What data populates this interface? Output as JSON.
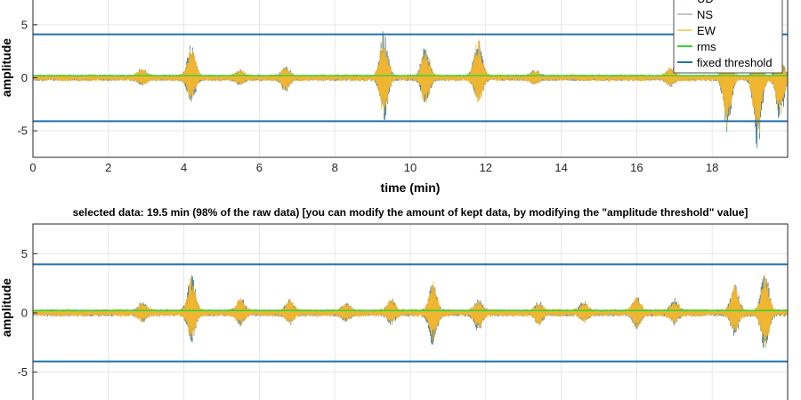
{
  "colors": {
    "UD": "#2f6f8f",
    "NS": "#9aa3a8",
    "EW": "#f5b62a",
    "rms": "#35d635",
    "fixed_threshold": "#2372a8",
    "grid": "#e6e6e6"
  },
  "chart_data": [
    {
      "type": "line",
      "title": "",
      "xlabel": "time (min)",
      "ylabel": "amplitude",
      "xlim": [
        0,
        20
      ],
      "ylim": [
        -7.5,
        7.5
      ],
      "xticks": [
        "0",
        "2",
        "4",
        "6",
        "8",
        "10",
        "12",
        "14",
        "16",
        "18"
      ],
      "xtick_values": [
        0,
        2,
        4,
        6,
        8,
        10,
        12,
        14,
        16,
        18
      ],
      "yticks": [
        "-5",
        "0",
        "5"
      ],
      "ytick_values": [
        -5,
        0,
        5
      ],
      "grid": true,
      "legend_position": "top-right",
      "series": [
        {
          "name": "UD",
          "kind": "waveform",
          "noise_amplitude": 0.25
        },
        {
          "name": "NS",
          "kind": "waveform",
          "noise_amplitude": 0.25
        },
        {
          "name": "EW",
          "kind": "waveform",
          "noise_amplitude": 0.3
        },
        {
          "name": "rms",
          "kind": "line",
          "values": [
            0.2
          ]
        },
        {
          "name": "fixed threshold",
          "kind": "hline",
          "values": [
            4.1,
            -4.1
          ]
        }
      ],
      "bursts": [
        {
          "t": 2.9,
          "up": 0.8,
          "down": -0.6
        },
        {
          "t": 4.2,
          "up": 3.3,
          "down": -2.4
        },
        {
          "t": 5.5,
          "up": 0.6,
          "down": -0.5
        },
        {
          "t": 6.7,
          "up": 1.0,
          "down": -1.2
        },
        {
          "t": 9.3,
          "up": 4.5,
          "down": -3.9
        },
        {
          "t": 10.4,
          "up": 3.0,
          "down": -2.7
        },
        {
          "t": 11.8,
          "up": 4.1,
          "down": -2.6
        },
        {
          "t": 13.3,
          "up": 0.6,
          "down": -0.5
        },
        {
          "t": 16.9,
          "up": 0.9,
          "down": -0.7
        },
        {
          "t": 18.4,
          "up": 2.1,
          "down": -5.1
        },
        {
          "t": 19.2,
          "up": 1.4,
          "down": -7.0
        },
        {
          "t": 19.8,
          "up": 1.8,
          "down": -4.0
        }
      ]
    },
    {
      "type": "line",
      "title": "selected data: 19.5 min (98% of the raw data) [you can modify the amount of kept data, by modifying the \"amplitude threshold\" value]",
      "xlabel": "",
      "ylabel": "amplitude",
      "xlim": [
        0,
        20
      ],
      "ylim": [
        -7.5,
        7.5
      ],
      "yticks": [
        "-5",
        "0",
        "5"
      ],
      "ytick_values": [
        -5,
        0,
        5
      ],
      "grid": true,
      "series": [
        {
          "name": "UD",
          "kind": "waveform",
          "noise_amplitude": 0.25
        },
        {
          "name": "NS",
          "kind": "waveform",
          "noise_amplitude": 0.25
        },
        {
          "name": "EW",
          "kind": "waveform",
          "noise_amplitude": 0.3
        },
        {
          "name": "rms",
          "kind": "line",
          "values": [
            0.2
          ]
        },
        {
          "name": "fixed threshold",
          "kind": "hline",
          "values": [
            4.1,
            -4.1
          ]
        }
      ],
      "bursts": [
        {
          "t": 2.9,
          "up": 0.8,
          "down": -0.6
        },
        {
          "t": 4.2,
          "up": 3.3,
          "down": -2.4
        },
        {
          "t": 5.5,
          "up": 1.2,
          "down": -0.9
        },
        {
          "t": 6.8,
          "up": 1.0,
          "down": -0.8
        },
        {
          "t": 8.3,
          "up": 0.8,
          "down": -0.6
        },
        {
          "t": 9.5,
          "up": 1.1,
          "down": -0.8
        },
        {
          "t": 10.6,
          "up": 2.8,
          "down": -2.6
        },
        {
          "t": 11.8,
          "up": 1.0,
          "down": -1.4
        },
        {
          "t": 13.4,
          "up": 0.8,
          "down": -0.9
        },
        {
          "t": 14.6,
          "up": 0.9,
          "down": -0.6
        },
        {
          "t": 16.0,
          "up": 1.3,
          "down": -1.3
        },
        {
          "t": 17.0,
          "up": 1.0,
          "down": -0.8
        },
        {
          "t": 18.6,
          "up": 2.5,
          "down": -1.8
        },
        {
          "t": 19.4,
          "up": 3.6,
          "down": -3.1
        }
      ]
    }
  ],
  "legend": {
    "items": [
      {
        "label": "UD",
        "color_key": "UD"
      },
      {
        "label": "NS",
        "color_key": "NS"
      },
      {
        "label": "EW",
        "color_key": "EW"
      },
      {
        "label": "rms",
        "color_key": "rms"
      },
      {
        "label": "fixed threshold",
        "color_key": "fixed_threshold"
      }
    ]
  }
}
